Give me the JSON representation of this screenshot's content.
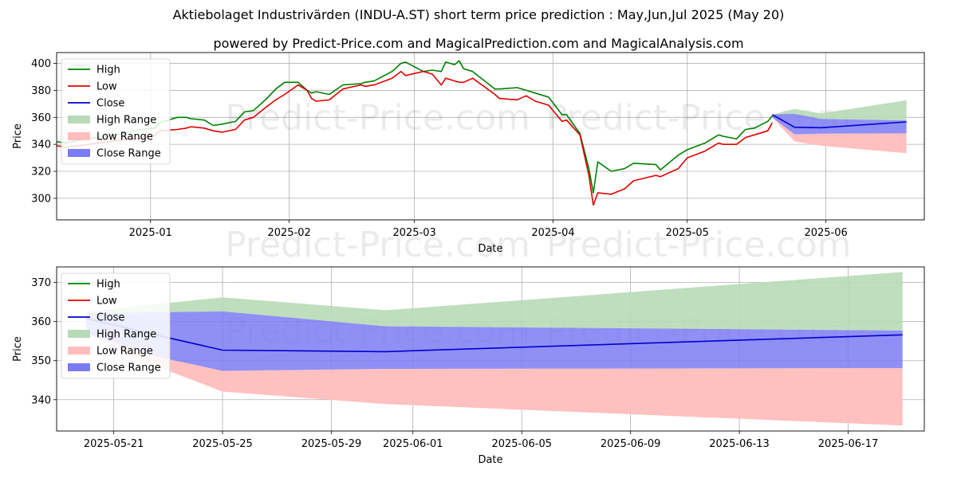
{
  "titles": {
    "main": "Aktiebolaget Industrivärden (INDU-A.ST) short term price prediction : May,Jun,Jul 2025 (May 20)",
    "sub": "powered by Predict-Price.com and MagicalPrediction.com and MagicalAnalysis.com"
  },
  "watermark": "Predict-Price.com",
  "colors": {
    "high": "#008000",
    "low": "#e00000",
    "close": "#0000cc",
    "high_range": "#b7dab7",
    "low_range": "#ffbdbd",
    "close_range": "#7b7bf5",
    "grid": "#b0b0b0"
  },
  "chart_data": [
    {
      "type": "line",
      "xlabel": "Date",
      "ylabel": "Price",
      "xlim": [
        "2024-12-11",
        "2025-06-23"
      ],
      "ylim": [
        284,
        408
      ],
      "yticks": [
        300,
        320,
        340,
        360,
        380,
        400
      ],
      "xticks": [
        {
          "date": "2025-01-01",
          "label": "2025-01"
        },
        {
          "date": "2025-02-01",
          "label": "2025-02"
        },
        {
          "date": "2025-03-01",
          "label": "2025-03"
        },
        {
          "date": "2025-04-01",
          "label": "2025-04"
        },
        {
          "date": "2025-05-01",
          "label": "2025-05"
        },
        {
          "date": "2025-06-01",
          "label": "2025-06"
        }
      ],
      "grid": true,
      "legend": "upper-left",
      "legend_entries": [
        "High",
        "Low",
        "Close",
        "High Range",
        "Low Range",
        "Close Range"
      ],
      "history": {
        "dates": [
          "2024-12-11",
          "2024-12-13",
          "2024-12-16",
          "2024-12-18",
          "2024-12-20",
          "2024-12-23",
          "2024-12-27",
          "2024-12-30",
          "2025-01-02",
          "2025-01-03",
          "2025-01-07",
          "2025-01-09",
          "2025-01-10",
          "2025-01-13",
          "2025-01-15",
          "2025-01-17",
          "2025-01-20",
          "2025-01-22",
          "2025-01-24",
          "2025-01-27",
          "2025-01-29",
          "2025-01-31",
          "2025-02-03",
          "2025-02-05",
          "2025-02-06",
          "2025-02-07",
          "2025-02-10",
          "2025-02-13",
          "2025-02-17",
          "2025-02-18",
          "2025-02-20",
          "2025-02-24",
          "2025-02-26",
          "2025-02-27",
          "2025-03-03",
          "2025-03-05",
          "2025-03-07",
          "2025-03-08",
          "2025-03-10",
          "2025-03-11",
          "2025-03-12",
          "2025-03-14",
          "2025-03-19",
          "2025-03-20",
          "2025-03-24",
          "2025-03-26",
          "2025-03-28",
          "2025-03-31",
          "2025-04-03",
          "2025-04-04",
          "2025-04-07",
          "2025-04-09",
          "2025-04-10",
          "2025-04-11",
          "2025-04-14",
          "2025-04-17",
          "2025-04-19",
          "2025-04-24",
          "2025-04-25",
          "2025-04-29",
          "2025-05-01",
          "2025-05-05",
          "2025-05-08",
          "2025-05-09",
          "2025-05-12",
          "2025-05-14",
          "2025-05-16",
          "2025-05-19",
          "2025-05-20"
        ],
        "high": [
          342,
          341,
          343,
          344,
          345,
          346,
          349,
          351,
          352,
          356,
          360,
          360,
          359,
          358,
          354,
          355,
          357,
          364,
          365,
          374,
          381,
          386,
          386,
          380,
          378,
          379,
          377,
          384,
          385,
          386,
          387,
          394,
          400,
          401,
          394,
          395,
          394,
          401,
          399,
          402,
          396,
          394,
          381,
          381,
          382,
          380,
          378,
          375,
          362,
          362,
          348,
          322,
          304,
          327,
          320,
          322,
          326,
          325,
          321,
          332,
          336,
          341,
          347,
          346,
          344,
          351,
          352,
          357,
          361
        ],
        "low": [
          339,
          338,
          339,
          340,
          341,
          342,
          344,
          345,
          347,
          350,
          351,
          352,
          353,
          352,
          350,
          349,
          351,
          358,
          360,
          368,
          373,
          377,
          384,
          380,
          374,
          372,
          373,
          381,
          384,
          383,
          384,
          389,
          394,
          391,
          394,
          392,
          384,
          389,
          387,
          386,
          386,
          389,
          377,
          374,
          373,
          376,
          372,
          369,
          357,
          358,
          347,
          317,
          295,
          304,
          303,
          307,
          313,
          317,
          316,
          322,
          330,
          335,
          341,
          340,
          340,
          345,
          347,
          350,
          356
        ],
        "close": []
      },
      "forecast": {
        "dates": [
          "2025-05-20",
          "2025-05-25",
          "2025-05-31",
          "2025-06-19"
        ],
        "close": [
          362,
          352.7,
          352.3,
          356.6
        ],
        "close_range_upper": [
          362,
          362.6,
          358.8,
          357.7
        ],
        "close_range_lower": [
          360,
          347.4,
          347.9,
          348.1
        ],
        "high_range_upper": [
          362,
          366.2,
          362.9,
          372.7
        ],
        "high_range_lower": [
          360,
          362.6,
          358.8,
          357.7
        ],
        "low_range_upper": [
          360,
          347.4,
          347.9,
          348.1
        ],
        "low_range_lower": [
          360,
          342.1,
          338.9,
          333.4
        ]
      }
    },
    {
      "type": "line",
      "xlabel": "Date",
      "ylabel": "Price",
      "xlim": [
        "2025-05-18.9",
        "2025-06-19.8"
      ],
      "ylim": [
        332,
        374
      ],
      "yticks": [
        340,
        350,
        360,
        370
      ],
      "xticks": [
        {
          "date": "2025-05-21",
          "label": "2025-05-21"
        },
        {
          "date": "2025-05-25",
          "label": "2025-05-25"
        },
        {
          "date": "2025-05-29",
          "label": "2025-05-29"
        },
        {
          "date": "2025-06-01",
          "label": "2025-06-01"
        },
        {
          "date": "2025-06-05",
          "label": "2025-06-05"
        },
        {
          "date": "2025-06-09",
          "label": "2025-06-09"
        },
        {
          "date": "2025-06-13",
          "label": "2025-06-13"
        },
        {
          "date": "2025-06-17",
          "label": "2025-06-17"
        }
      ],
      "grid": true,
      "legend": "upper-left",
      "legend_entries": [
        "High",
        "Low",
        "Close",
        "High Range",
        "Low Range",
        "Close Range"
      ],
      "forecast": {
        "dates": [
          "2025-05-20",
          "2025-05-22.6",
          "2025-05-25",
          "2025-05-31",
          "2025-06-19"
        ],
        "close": [
          360.8,
          356.5,
          352.7,
          352.3,
          356.6
        ],
        "close_range_upper": [
          362.2,
          362.4,
          362.6,
          358.8,
          357.7
        ],
        "close_range_lower": [
          357,
          351,
          347.4,
          347.9,
          348.1
        ],
        "high_range_upper": [
          362.5,
          364.5,
          366.2,
          362.9,
          372.7
        ],
        "high_range_lower": [
          362.2,
          362.4,
          362.6,
          358.8,
          357.7
        ],
        "low_range_upper": [
          357,
          351,
          347.4,
          347.9,
          348.1
        ],
        "low_range_lower": [
          357,
          348.5,
          342.1,
          338.9,
          333.4
        ]
      }
    }
  ]
}
